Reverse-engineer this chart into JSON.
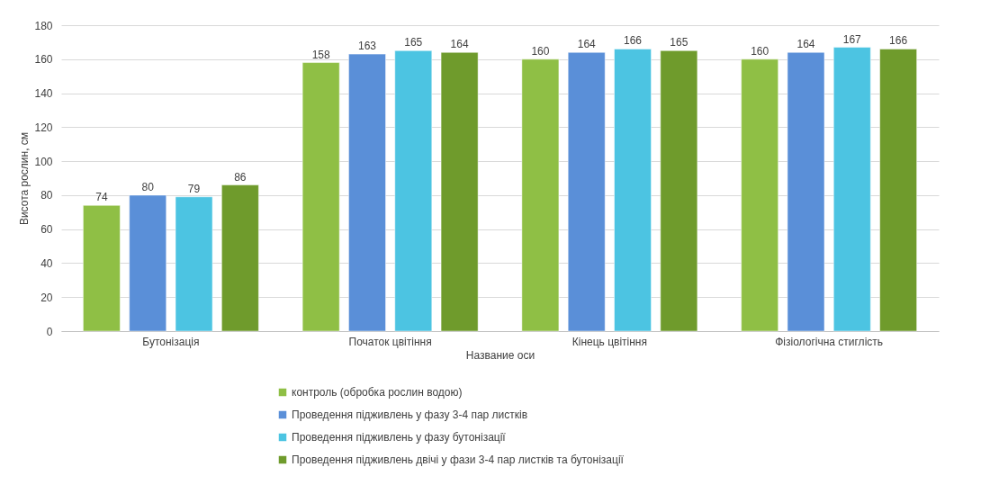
{
  "chart_data": {
    "type": "bar",
    "xlabel": "Название оси",
    "ylabel": "Висота рослин, см",
    "categories": [
      "Бутонізація",
      "Початок цвітіння",
      "Кінець цвітіння",
      "Фізіологічна стиглість"
    ],
    "series": [
      {
        "name": "контроль (обробка рослин водою)",
        "color": "#8fbf45",
        "values": [
          74,
          158,
          160,
          160
        ]
      },
      {
        "name": "Проведення підживлень у фазу 3-4 пар листків",
        "color": "#5a8fd8",
        "values": [
          80,
          163,
          164,
          164
        ]
      },
      {
        "name": "Проведення підживлень у фазу бутонізації",
        "color": "#4cc4e2",
        "values": [
          79,
          165,
          166,
          167
        ]
      },
      {
        "name": "Проведення підживлень двічі у фази 3-4 пар листків та бутонізації",
        "color": "#6f9b2c",
        "values": [
          86,
          164,
          165,
          166
        ]
      }
    ],
    "ylim": [
      0,
      180
    ],
    "yticks": [
      0,
      20,
      40,
      60,
      80,
      100,
      120,
      140,
      160,
      180
    ],
    "grid": "y",
    "legend": "bottom",
    "data_labels": true
  }
}
